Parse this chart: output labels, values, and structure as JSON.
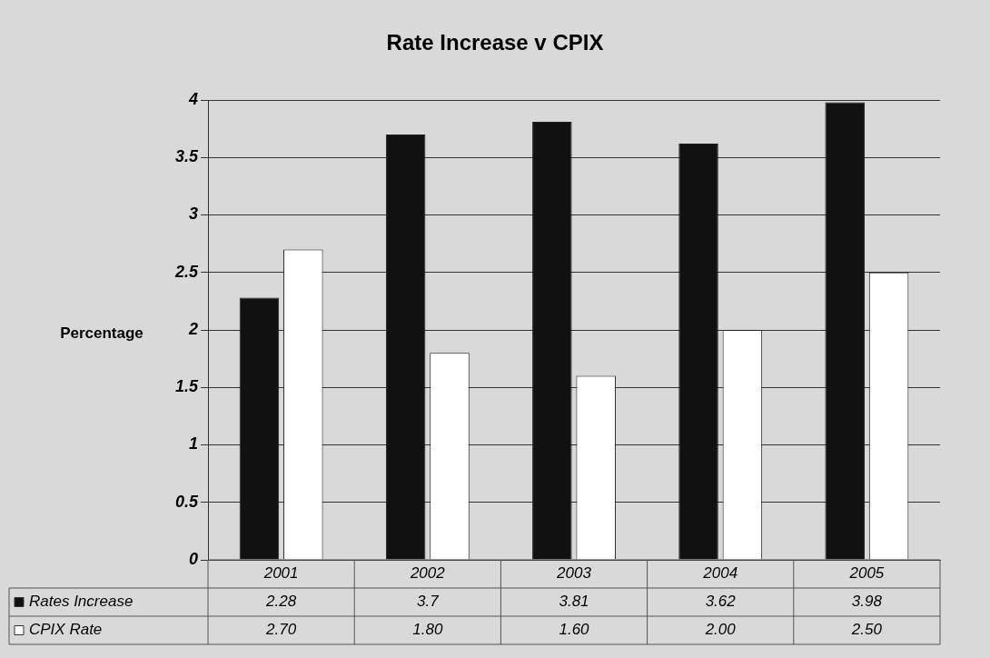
{
  "chart_data": {
    "type": "bar",
    "title": "Rate Increase v CPIX",
    "ylabel": "Percentage",
    "categories": [
      "2001",
      "2002",
      "2003",
      "2004",
      "2005"
    ],
    "series": [
      {
        "name": "Rates Increase",
        "color": "#111111",
        "values": [
          2.28,
          3.7,
          3.81,
          3.62,
          3.98
        ],
        "value_labels": [
          "2.28",
          "3.7",
          "3.81",
          "3.62",
          "3.98"
        ]
      },
      {
        "name": "CPIX Rate",
        "color": "#ffffff",
        "values": [
          2.7,
          1.8,
          1.6,
          2.0,
          2.5
        ],
        "value_labels": [
          "2.70",
          "1.80",
          "1.60",
          "2.00",
          "2.50"
        ]
      }
    ],
    "ylim": [
      0,
      4
    ],
    "yticks": [
      0,
      0.5,
      1,
      1.5,
      2,
      2.5,
      3,
      3.5,
      4
    ],
    "grid": "y",
    "legend": "bottom"
  }
}
